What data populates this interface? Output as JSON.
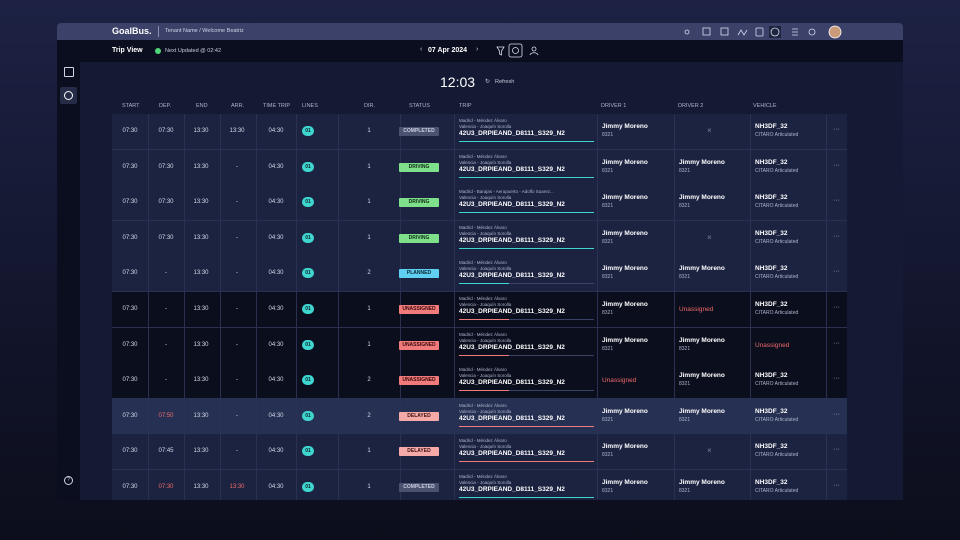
{
  "header": {
    "logo": "GoalBus.",
    "tenant": "Tenant Name / Welcome Beatriz"
  },
  "toolbar": {
    "view": "Trip View",
    "updated": "Next Updated @ 02:42",
    "date": "07 Apr 2024"
  },
  "clock": {
    "time": "12:03",
    "refresh": "Refresh"
  },
  "table": {
    "columns": [
      "START",
      "DEP.",
      "END",
      "ARR.",
      "TIME TRIP",
      "LINES",
      "DIR.",
      "STATUS",
      "TRIP",
      "DRIVER 1",
      "DRIVER 2",
      "VEHICLE"
    ],
    "rows": [
      {
        "start": "07:30",
        "dep": "07:30",
        "end": "13:30",
        "arr": "13:30",
        "time_trip": "04:30",
        "line": "01",
        "dir": "1",
        "status": "COMPLETED",
        "trip": {
          "from": "Madrid - Méndez Álvaro",
          "to": "Valencia - Joaquín Sorolla",
          "code": "42U3_DRPIEAND_D8111_S329_N2"
        },
        "driver1": {
          "name": "Jimmy Moreno",
          "id": "8321"
        },
        "driver2": null,
        "vehicle": {
          "code": "NH3DF_32",
          "model": "CITARO Articulated"
        },
        "late": []
      },
      {
        "start": "07:30",
        "dep": "07:30",
        "end": "13:30",
        "arr": "-",
        "time_trip": "04:30",
        "line": "01",
        "dir": "1",
        "status": "DRIVING",
        "trip": {
          "from": "Madrid - Méndez Álvaro",
          "to": "Valencia - Joaquín Sorolla",
          "code": "42U3_DRPIEAND_D8111_S329_N2"
        },
        "driver1": {
          "name": "Jimmy Moreno",
          "id": "8321"
        },
        "driver2": {
          "name": "Jimmy Moreno",
          "id": "8321"
        },
        "vehicle": {
          "code": "NH3DF_32",
          "model": "CITARO Articulated"
        },
        "late": []
      },
      {
        "start": "07:30",
        "dep": "07:30",
        "end": "13:30",
        "arr": "-",
        "time_trip": "04:30",
        "line": "01",
        "dir": "1",
        "status": "DRIVING",
        "trip": {
          "from": "Madrid - Barajas - Aeropuerto - Adolfo Suarez...",
          "to": "Valencia - Joaquín Sorolla",
          "code": "42U3_DRPIEAND_D8111_S329_N2"
        },
        "driver1": {
          "name": "Jimmy Moreno",
          "id": "8321"
        },
        "driver2": {
          "name": "Jimmy Moreno",
          "id": "8321"
        },
        "vehicle": {
          "code": "NH3DF_32",
          "model": "CITARO Articulated"
        },
        "late": []
      },
      {
        "start": "07:30",
        "dep": "07:30",
        "end": "13:30",
        "arr": "-",
        "time_trip": "04:30",
        "line": "01",
        "dir": "1",
        "status": "DRIVING",
        "trip": {
          "from": "Madrid - Méndez Álvaro",
          "to": "Valencia - Joaquín Sorolla",
          "code": "42U3_DRPIEAND_D8111_S329_N2"
        },
        "driver1": {
          "name": "Jimmy Moreno",
          "id": "8321"
        },
        "driver2": null,
        "vehicle": {
          "code": "NH3DF_32",
          "model": "CITARO Articulated"
        },
        "late": []
      },
      {
        "start": "07:30",
        "dep": "-",
        "end": "13:30",
        "arr": "-",
        "time_trip": "04:30",
        "line": "01",
        "dir": "2",
        "status": "PLANNED",
        "trip": {
          "from": "Madrid - Méndez Álvaro",
          "to": "Valencia - Joaquín Sorolla",
          "code": "42U3_DRPIEAND_D8111_S329_N2"
        },
        "driver1": {
          "name": "Jimmy Moreno",
          "id": "8321"
        },
        "driver2": {
          "name": "Jimmy Moreno",
          "id": "8321"
        },
        "vehicle": {
          "code": "NH3DF_32",
          "model": "CITARO Articulated"
        },
        "late": []
      },
      {
        "start": "07:30",
        "dep": "-",
        "end": "13:30",
        "arr": "-",
        "time_trip": "04:30",
        "line": "01",
        "dir": "1",
        "status": "UNASSIGNED",
        "trip": {
          "from": "Madrid - Méndez Álvaro",
          "to": "Valencia - Joaquín Sorolla",
          "code": "42U3_DRPIEAND_D8111_S329_N2"
        },
        "driver1": {
          "name": "Jimmy Moreno",
          "id": "8321"
        },
        "driver2": "Unassigned",
        "vehicle": {
          "code": "NH3DF_32",
          "model": "CITARO Articulated"
        },
        "late": []
      },
      {
        "start": "07:30",
        "dep": "-",
        "end": "13:30",
        "arr": "-",
        "time_trip": "04:30",
        "line": "01",
        "dir": "1",
        "status": "UNASSIGNED",
        "trip": {
          "from": "Madrid - Méndez Álvaro",
          "to": "Valencia - Joaquín Sorolla",
          "code": "42U3_DRPIEAND_D8111_S329_N2"
        },
        "driver1": {
          "name": "Jimmy Moreno",
          "id": "8321"
        },
        "driver2": {
          "name": "Jimmy Moreno",
          "id": "8321"
        },
        "vehicle": "Unassigned",
        "late": []
      },
      {
        "start": "07:30",
        "dep": "-",
        "end": "13:30",
        "arr": "-",
        "time_trip": "04:30",
        "line": "01",
        "dir": "2",
        "status": "UNASSIGNED",
        "trip": {
          "from": "Madrid - Méndez Álvaro",
          "to": "Valencia - Joaquín Sorolla",
          "code": "42U3_DRPIEAND_D8111_S329_N2"
        },
        "driver1": "Unassigned",
        "driver2": {
          "name": "Jimmy Moreno",
          "id": "8321"
        },
        "vehicle": {
          "code": "NH3DF_32",
          "model": "CITARO Articulated"
        },
        "late": []
      },
      {
        "start": "07:30",
        "dep": "07:50",
        "end": "13:30",
        "arr": "-",
        "time_trip": "04:30",
        "line": "01",
        "dir": "2",
        "status": "DELAYED",
        "trip": {
          "from": "Madrid - Méndez Álvaro",
          "to": "Valencia - Joaquín Sorolla",
          "code": "42U3_DRPIEAND_D8111_S329_N2"
        },
        "driver1": {
          "name": "Jimmy Moreno",
          "id": "8321"
        },
        "driver2": {
          "name": "Jimmy Moreno",
          "id": "8321"
        },
        "vehicle": {
          "code": "NH3DF_32",
          "model": "CITARO Articulated"
        },
        "late": [
          "dep"
        ]
      },
      {
        "start": "07:30",
        "dep": "07:45",
        "end": "13:30",
        "arr": "-",
        "time_trip": "04:30",
        "line": "01",
        "dir": "1",
        "status": "DELAYED",
        "trip": {
          "from": "Madrid - Méndez Álvaro",
          "to": "Valencia - Joaquín Sorolla",
          "code": "42U3_DRPIEAND_D8111_S329_N2"
        },
        "driver1": {
          "name": "Jimmy Moreno",
          "id": "8321"
        },
        "driver2": null,
        "vehicle": {
          "code": "NH3DF_32",
          "model": "CITARO Articulated"
        },
        "late": []
      },
      {
        "start": "07:30",
        "dep": "07:30",
        "end": "13:30",
        "arr": "13:30",
        "time_trip": "04:30",
        "line": "01",
        "dir": "1",
        "status": "COMPLETED",
        "trip": {
          "from": "Madrid - Méndez Álvaro",
          "to": "Valencia - Joaquín Sorolla",
          "code": "42U3_DRPIEAND_D8111_S329_N2"
        },
        "driver1": {
          "name": "Jimmy Moreno",
          "id": "8321"
        },
        "driver2": {
          "name": "Jimmy Moreno",
          "id": "8321"
        },
        "vehicle": {
          "code": "NH3DF_32",
          "model": "CITARO Articulated"
        },
        "late": [
          "dep",
          "arr"
        ]
      }
    ]
  }
}
